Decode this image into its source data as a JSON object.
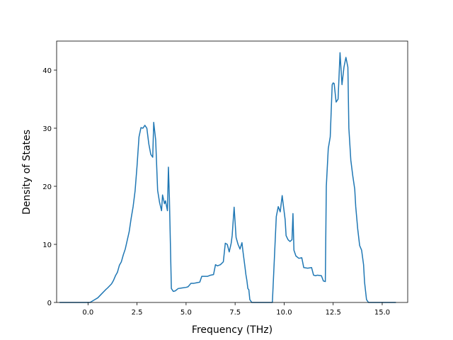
{
  "chart_data": {
    "type": "line",
    "title": "",
    "xlabel": "Frequency (THz)",
    "ylabel": "Density of States",
    "xlim": [
      -1.6,
      16.3
    ],
    "ylim": [
      0,
      45
    ],
    "xticks": [
      0.0,
      2.5,
      5.0,
      7.5,
      10.0,
      12.5,
      15.0
    ],
    "xtick_labels": [
      "0.0",
      "2.5",
      "5.0",
      "7.5",
      "10.0",
      "12.5",
      "15.0"
    ],
    "yticks": [
      0,
      10,
      20,
      30,
      40
    ],
    "ytick_labels": [
      "0",
      "10",
      "20",
      "30",
      "40"
    ],
    "grid": false,
    "legend": "none",
    "series": [
      {
        "color": "#1f77b4",
        "x": [
          -1.45,
          -0.5,
          0.1,
          0.3,
          0.5,
          0.7,
          0.9,
          1.0,
          1.2,
          1.3,
          1.4,
          1.5,
          1.6,
          1.7,
          1.8,
          1.9,
          2.0,
          2.1,
          2.2,
          2.3,
          2.4,
          2.5,
          2.55,
          2.6,
          2.7,
          2.8,
          2.9,
          3.0,
          3.1,
          3.2,
          3.3,
          3.35,
          3.45,
          3.55,
          3.65,
          3.75,
          3.8,
          3.9,
          3.95,
          4.05,
          4.1,
          4.15,
          4.25,
          4.35,
          4.45,
          4.6,
          4.8,
          5.0,
          5.1,
          5.25,
          5.4,
          5.55,
          5.7,
          5.8,
          5.95,
          6.1,
          6.25,
          6.4,
          6.5,
          6.6,
          6.75,
          6.9,
          7.0,
          7.1,
          7.2,
          7.3,
          7.35,
          7.45,
          7.55,
          7.65,
          7.75,
          7.85,
          7.9,
          8.0,
          8.05,
          8.1,
          8.15,
          8.2,
          8.25,
          8.35,
          8.6,
          9.0,
          9.4,
          9.6,
          9.7,
          9.8,
          9.9,
          9.95,
          10.05,
          10.1,
          10.2,
          10.3,
          10.4,
          10.45,
          10.5,
          10.6,
          10.75,
          10.9,
          11.0,
          11.2,
          11.4,
          11.5,
          11.6,
          11.7,
          11.9,
          12.0,
          12.1,
          12.15,
          12.25,
          12.35,
          12.45,
          12.5,
          12.55,
          12.65,
          12.75,
          12.85,
          12.95,
          13.05,
          13.15,
          13.25,
          13.3,
          13.4,
          13.5,
          13.6,
          13.65,
          13.75,
          13.85,
          13.95,
          14.05,
          14.1,
          14.2,
          14.3,
          14.6,
          14.9,
          15.3,
          15.7
        ],
        "y": [
          0,
          0,
          0,
          0.4,
          0.8,
          1.5,
          2.2,
          2.5,
          3.2,
          3.8,
          4.6,
          5.2,
          6.4,
          7.0,
          8.2,
          9.2,
          10.7,
          12.2,
          14.5,
          16.5,
          19.2,
          23.5,
          26.0,
          28.5,
          30.1,
          30.0,
          30.5,
          30.0,
          27.3,
          25.5,
          25.0,
          31.0,
          28.0,
          19.3,
          17.2,
          15.8,
          18.5,
          17.0,
          17.5,
          15.8,
          23.3,
          18.0,
          2.4,
          1.9,
          2.0,
          2.4,
          2.5,
          2.6,
          2.7,
          3.3,
          3.3,
          3.4,
          3.5,
          4.5,
          4.5,
          4.5,
          4.7,
          4.8,
          6.5,
          6.3,
          6.5,
          7.0,
          10.2,
          10.0,
          8.7,
          10.2,
          11.5,
          16.4,
          11.2,
          10.0,
          9.2,
          10.3,
          8.8,
          6.2,
          4.8,
          3.8,
          2.4,
          2.2,
          0.5,
          0,
          0,
          0,
          0,
          14.8,
          16.5,
          15.6,
          18.4,
          17.0,
          14.3,
          11.5,
          10.8,
          10.5,
          10.8,
          15.3,
          9.0,
          8.0,
          7.6,
          7.7,
          6.0,
          5.9,
          6.0,
          4.7,
          4.6,
          4.7,
          4.6,
          3.7,
          3.6,
          20.0,
          26.5,
          28.5,
          37.5,
          37.8,
          37.7,
          34.5,
          35.0,
          43.0,
          37.5,
          40.5,
          42.2,
          40.5,
          30.0,
          24.5,
          21.8,
          19.5,
          16.5,
          12.7,
          9.8,
          9.0,
          6.5,
          3.5,
          0.5,
          0,
          0,
          0,
          0,
          0
        ]
      }
    ]
  }
}
